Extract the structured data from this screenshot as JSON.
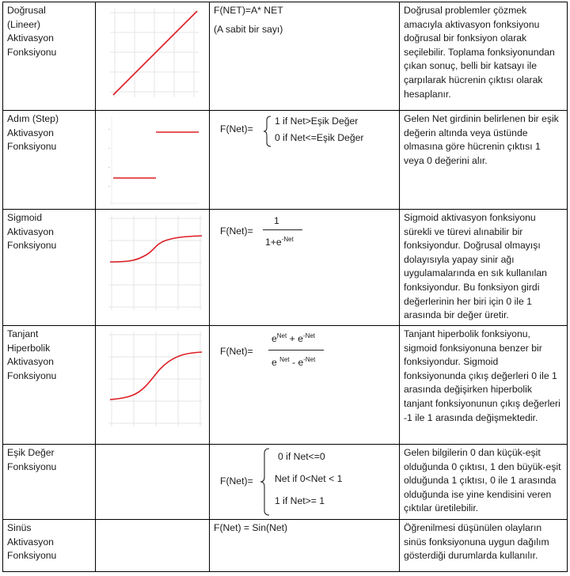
{
  "rows": [
    {
      "name": "Doğrusal\n(Lineer)\nAktivasyon\nFonksiyonu",
      "formula_main": "F(NET)=A* NET",
      "formula_note": "(A sabit bir sayı)",
      "description": "Doğrusal problemler çözmek amacıyla aktivasyon fonksiyonu doğrusal bir fonksiyon olarak seçilebilir. Toplama fonksiyonundan çıkan sonuç, belli bir katsayı ile çarpılarak hücrenin çıktısı olarak hesaplanır."
    },
    {
      "name": "Adım (Step)\nAktivasyon\nFonksiyonu",
      "formula_lhs": "F(Net)=",
      "case1": "1  if Net>Eşik Değer",
      "case2": "0  if Net<=Eşik Değer",
      "description": "Gelen Net girdinin belirlenen bir eşik değerin altında veya üstünde olmasına göre hücrenin çıktısı 1 veya 0 değerini alır."
    },
    {
      "name": "Sigmoid\nAktivasyon\nFonksiyonu",
      "formula_lhs": "F(Net)=",
      "numerator": "1",
      "denominator_base": "1+e",
      "denominator_exp": "-Net",
      "description": "Sigmoid aktivasyon fonksiyonu sürekli ve türevi alınabilir bir fonksiyondur. Doğrusal olmayışı dolayısıyla yapay sinir ağı uygulamalarında en sık kullanılan fonksiyondur. Bu fonksiyon girdi değerlerinin her biri için 0 ile 1 arasında bir değer üretir."
    },
    {
      "name": "Tanjant\nHiperbolik\nAktivasyon\nFonksiyonu",
      "formula_lhs": "F(Net)=",
      "num_a": "e",
      "num_a_exp": "Net",
      "num_op": " + e",
      "num_b_exp": "-Net",
      "den_a": "e ",
      "den_a_exp": "Net",
      "den_op": " - e",
      "den_b_exp": "-Net",
      "description": "Tanjant hiperbolik fonksiyonu, sigmoid fonksiyonuna benzer bir fonksiyondur. Sigmoid fonksiyonunda çıkış değerleri 0 ile 1 arasında değişirken hiperbolik tanjant fonksiyonunun çıkış değerleri -1 ile 1 arasında değişmektedir."
    },
    {
      "name": "Eşik Değer\nFonksiyonu",
      "formula_lhs": "F(Net)=",
      "case1": "0  if Net<=0",
      "case2": "Net  if  0<Net < 1",
      "case3": "1  if Net>= 1",
      "description": "Gelen bilgilerin 0 dan küçük-eşit olduğunda 0 çıktısı, 1 den büyük-eşit olduğunda 1 çıktısı, 0 ile 1 arasında olduğunda ise yine kendisini veren çıktılar üretilebilir."
    },
    {
      "name": "Sinüs\nAktivasyon\nFonksiyonu",
      "formula_main": "F(Net) = Sin(Net)",
      "description": "Öğrenilmesi düşünülen olayların sinüs fonksiyonuna uygun dağılım gösterdiği durumlarda kullanılır."
    }
  ],
  "colors": {
    "curve": "#dd1e24",
    "grid": "#e4e4e4",
    "border": "#000000"
  }
}
